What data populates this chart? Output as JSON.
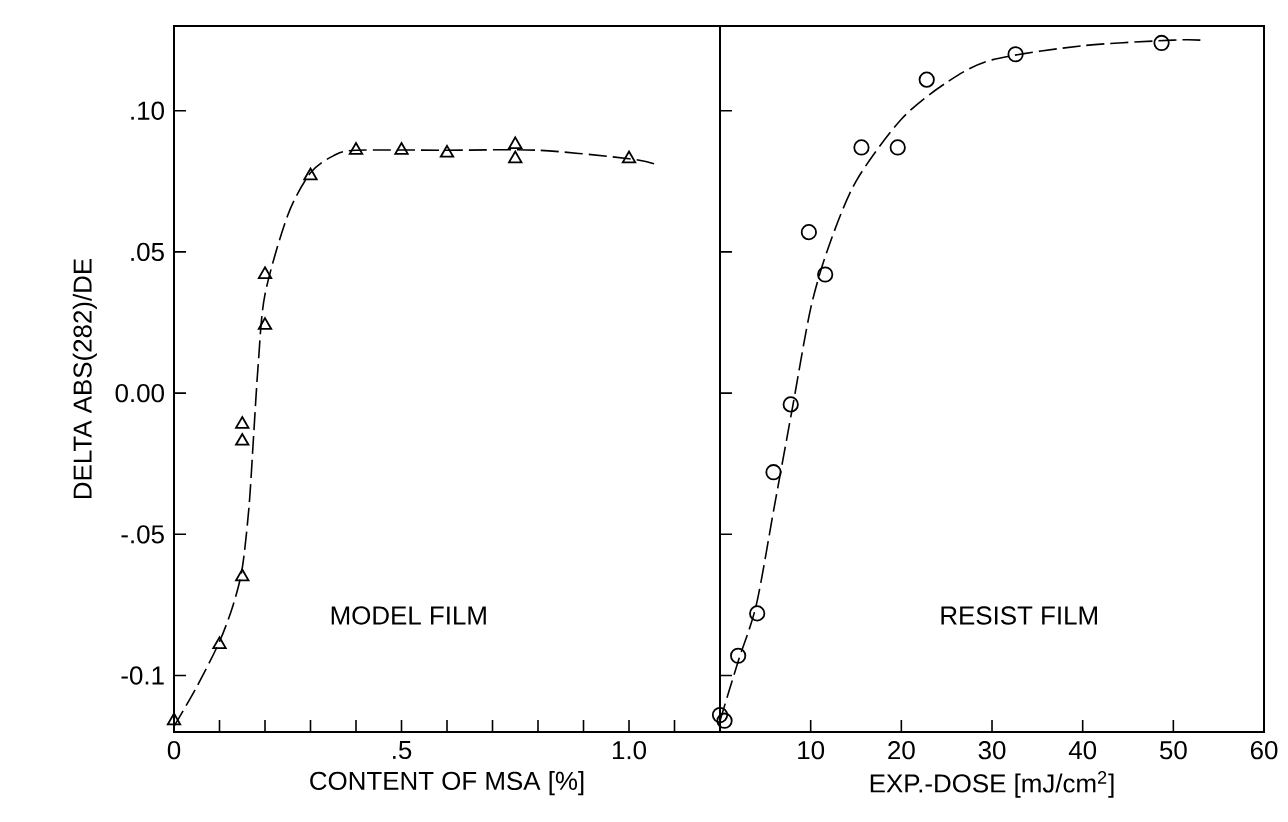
{
  "chart_data": [
    {
      "type": "scatter",
      "xlabel": "CONTENT OF MSA [%]",
      "ylabel": "DELTA ABS(282)/DE",
      "annotations": [
        "MODEL FILM"
      ],
      "xlim": [
        0,
        1.2
      ],
      "ylim": [
        -0.12,
        0.13
      ],
      "xticks": [
        0,
        {
          "value": 0.1,
          "label": null
        },
        {
          "value": 0.2,
          "label": null
        },
        {
          "value": 0.3,
          "label": null
        },
        {
          "value": 0.4,
          "label": null
        },
        {
          "value": 0.5,
          "label": ".5"
        },
        {
          "value": 0.6,
          "label": null
        },
        {
          "value": 0.7,
          "label": null
        },
        {
          "value": 0.8,
          "label": null
        },
        {
          "value": 0.9,
          "label": null
        },
        {
          "value": 1.0,
          "label": "1.0"
        },
        {
          "value": 1.1,
          "label": null
        }
      ],
      "yticks": [
        {
          "value": -0.1,
          "label": "-0.1"
        },
        {
          "value": -0.05,
          "label": "-.05"
        },
        {
          "value": 0,
          "label": "0.00"
        },
        {
          "value": 0.05,
          "label": ".05"
        },
        {
          "value": 0.1,
          "label": ".10"
        }
      ],
      "series": [
        {
          "marker": "triangle",
          "color": "#000000",
          "x": [
            0,
            0.1,
            0.15,
            0.15,
            0.15,
            0.2,
            0.2,
            0.3,
            0.4,
            0.5,
            0.6,
            0.75,
            0.75,
            1.0
          ],
          "values": [
            -0.116,
            -0.089,
            -0.065,
            -0.017,
            -0.011,
            0.024,
            0.042,
            0.077,
            0.086,
            0.086,
            0.085,
            0.088,
            0.083,
            0.083
          ]
        },
        {
          "type": "line",
          "marker": "none",
          "line_style": "dashed",
          "color": "#000000",
          "x": [
            0,
            0.05,
            0.1,
            0.13,
            0.15,
            0.165,
            0.175,
            0.185,
            0.2,
            0.25,
            0.3,
            0.35,
            0.4,
            0.6,
            0.8,
            1.0,
            1.06
          ],
          "values": [
            -0.118,
            -0.104,
            -0.088,
            -0.075,
            -0.062,
            -0.04,
            -0.015,
            0.01,
            0.035,
            0.063,
            0.078,
            0.084,
            0.086,
            0.086,
            0.086,
            0.083,
            0.081
          ]
        }
      ]
    },
    {
      "type": "scatter",
      "xlabel": "EXP.-DOSE [mJ/cm$^{2}$]",
      "annotations": [
        "RESIST FILM"
      ],
      "xlim": [
        0,
        60
      ],
      "ylim": [
        -0.12,
        0.13
      ],
      "tick_labels": "x",
      "xticks": [
        10,
        20,
        30,
        40,
        50,
        60
      ],
      "yticks": [
        {
          "value": -0.1,
          "label": null
        },
        {
          "value": -0.05,
          "label": null
        },
        {
          "value": 0,
          "label": null
        },
        {
          "value": 0.05,
          "label": null
        },
        {
          "value": 0.1,
          "label": null
        }
      ],
      "series": [
        {
          "marker": "circle",
          "color": "#000000",
          "x": [
            0,
            0.5,
            2.0,
            4.1,
            5.9,
            7.8,
            9.8,
            11.6,
            15.6,
            19.6,
            22.8,
            32.6,
            48.7
          ],
          "values": [
            -0.114,
            -0.116,
            -0.093,
            -0.078,
            -0.028,
            -0.004,
            0.057,
            0.042,
            0.087,
            0.087,
            0.111,
            0.12,
            0.124
          ]
        },
        {
          "type": "line",
          "marker": "none",
          "line_style": "dashed",
          "color": "#000000",
          "x": [
            0,
            2,
            4,
            6,
            8,
            10,
            12,
            15,
            20,
            25,
            30,
            40,
            50,
            53
          ],
          "values": [
            -0.116,
            -0.095,
            -0.075,
            -0.04,
            -0.005,
            0.03,
            0.052,
            0.075,
            0.097,
            0.11,
            0.118,
            0.123,
            0.125,
            0.125
          ]
        }
      ]
    }
  ]
}
